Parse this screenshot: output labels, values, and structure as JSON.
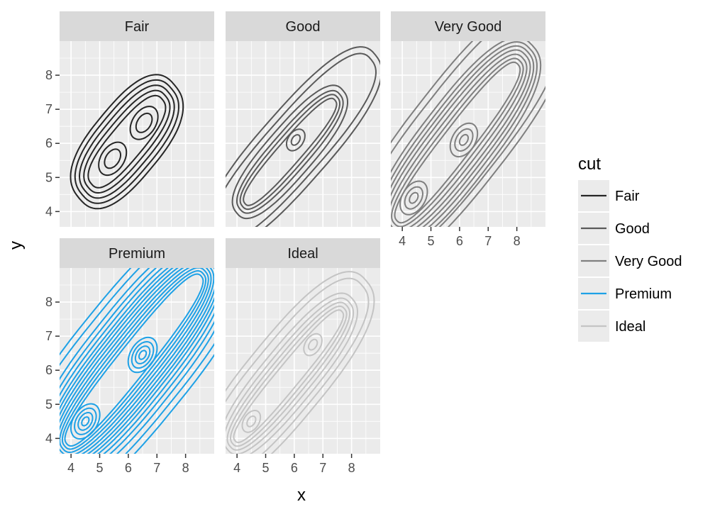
{
  "chart_data": {
    "type": "contour",
    "xlabel": "x",
    "ylabel": "y",
    "xlim": [
      3.6,
      9.0
    ],
    "ylim": [
      3.55,
      9.0
    ],
    "x_ticks": [
      4,
      5,
      6,
      7,
      8
    ],
    "y_ticks": [
      4,
      5,
      6,
      7,
      8
    ],
    "grid": true,
    "legend": {
      "title": "cut",
      "placement": "right",
      "entries": [
        {
          "label": "Fair",
          "color": "#262626"
        },
        {
          "label": "Good",
          "color": "#5a5a5a"
        },
        {
          "label": "Very Good",
          "color": "#7f7f7f"
        },
        {
          "label": "Premium",
          "color": "#1ea1e6"
        },
        {
          "label": "Ideal",
          "color": "#c4c4c4"
        }
      ]
    },
    "panels": [
      {
        "facet": "Fair",
        "color": "#262626",
        "mode": "closed",
        "centers": [
          [
            5.45,
            5.55
          ],
          [
            6.55,
            6.6
          ]
        ],
        "axis": [
          [
            5.1,
            5.2
          ],
          [
            6.8,
            6.9
          ]
        ],
        "half_widths": [
          0.22,
          0.38,
          0.55,
          0.7,
          0.85,
          1.0,
          1.15
        ]
      },
      {
        "facet": "Good",
        "color": "#5a5a5a",
        "mode": "closed",
        "centers": [
          [
            6.05,
            6.1
          ]
        ],
        "axis": [
          [
            4.55,
            4.5
          ],
          [
            7.15,
            7.0
          ]
        ],
        "half_widths": [
          0.12,
          0.25,
          0.38,
          0.5,
          0.62,
          0.78
        ],
        "extra": [
          {
            "type": "open",
            "axis": [
              [
                4.0,
                4.0
              ],
              [
                8.0,
                7.8
              ]
            ],
            "half_widths": [
              0.95,
              1.15
            ]
          }
        ]
      },
      {
        "facet": "Very Good",
        "color": "#7f7f7f",
        "mode": "closed",
        "centers": [
          [
            4.4,
            4.4
          ],
          [
            6.15,
            6.1
          ]
        ],
        "axis": [
          [
            4.15,
            4.1
          ],
          [
            7.7,
            7.95
          ]
        ],
        "half_widths": [
          0.12,
          0.25,
          0.38,
          0.5,
          0.62,
          0.75,
          0.88,
          1.0,
          1.12,
          1.25
        ],
        "extra": [
          {
            "type": "open",
            "axis": [
              [
                3.8,
                3.9
              ],
              [
                8.2,
                8.6
              ]
            ],
            "half_widths": [
              1.45,
              1.65
            ]
          }
        ]
      },
      {
        "facet": "Premium",
        "color": "#1ea1e6",
        "mode": "closed",
        "centers": [
          [
            4.5,
            4.5
          ],
          [
            6.5,
            6.45
          ]
        ],
        "axis": [
          [
            4.2,
            4.2
          ],
          [
            8.2,
            8.4
          ]
        ],
        "half_widths": [
          0.1,
          0.2,
          0.3,
          0.4,
          0.5,
          0.6,
          0.7,
          0.8,
          0.9,
          1.0,
          1.1,
          1.2,
          1.32,
          1.45,
          1.6
        ],
        "extra": [
          {
            "type": "open",
            "axis": [
              [
                3.8,
                3.85
              ],
              [
                8.5,
                8.7
              ]
            ],
            "half_widths": [
              1.8,
              2.0
            ]
          }
        ]
      },
      {
        "facet": "Ideal",
        "color": "#c4c4c4",
        "mode": "closed",
        "centers": [
          [
            4.5,
            4.5
          ],
          [
            6.65,
            6.75
          ]
        ],
        "axis": [
          [
            4.2,
            4.2
          ],
          [
            7.4,
            7.45
          ]
        ],
        "half_widths": [
          0.12,
          0.25,
          0.38,
          0.5,
          0.62,
          0.75,
          0.9
        ],
        "extra": [
          {
            "type": "open",
            "axis": [
              [
                3.85,
                3.9
              ],
              [
                7.6,
                7.7
              ]
            ],
            "half_widths": [
              1.1,
              1.3
            ]
          }
        ]
      }
    ]
  },
  "strips": [
    "Fair",
    "Good",
    "Very Good",
    "Premium",
    "Ideal"
  ]
}
